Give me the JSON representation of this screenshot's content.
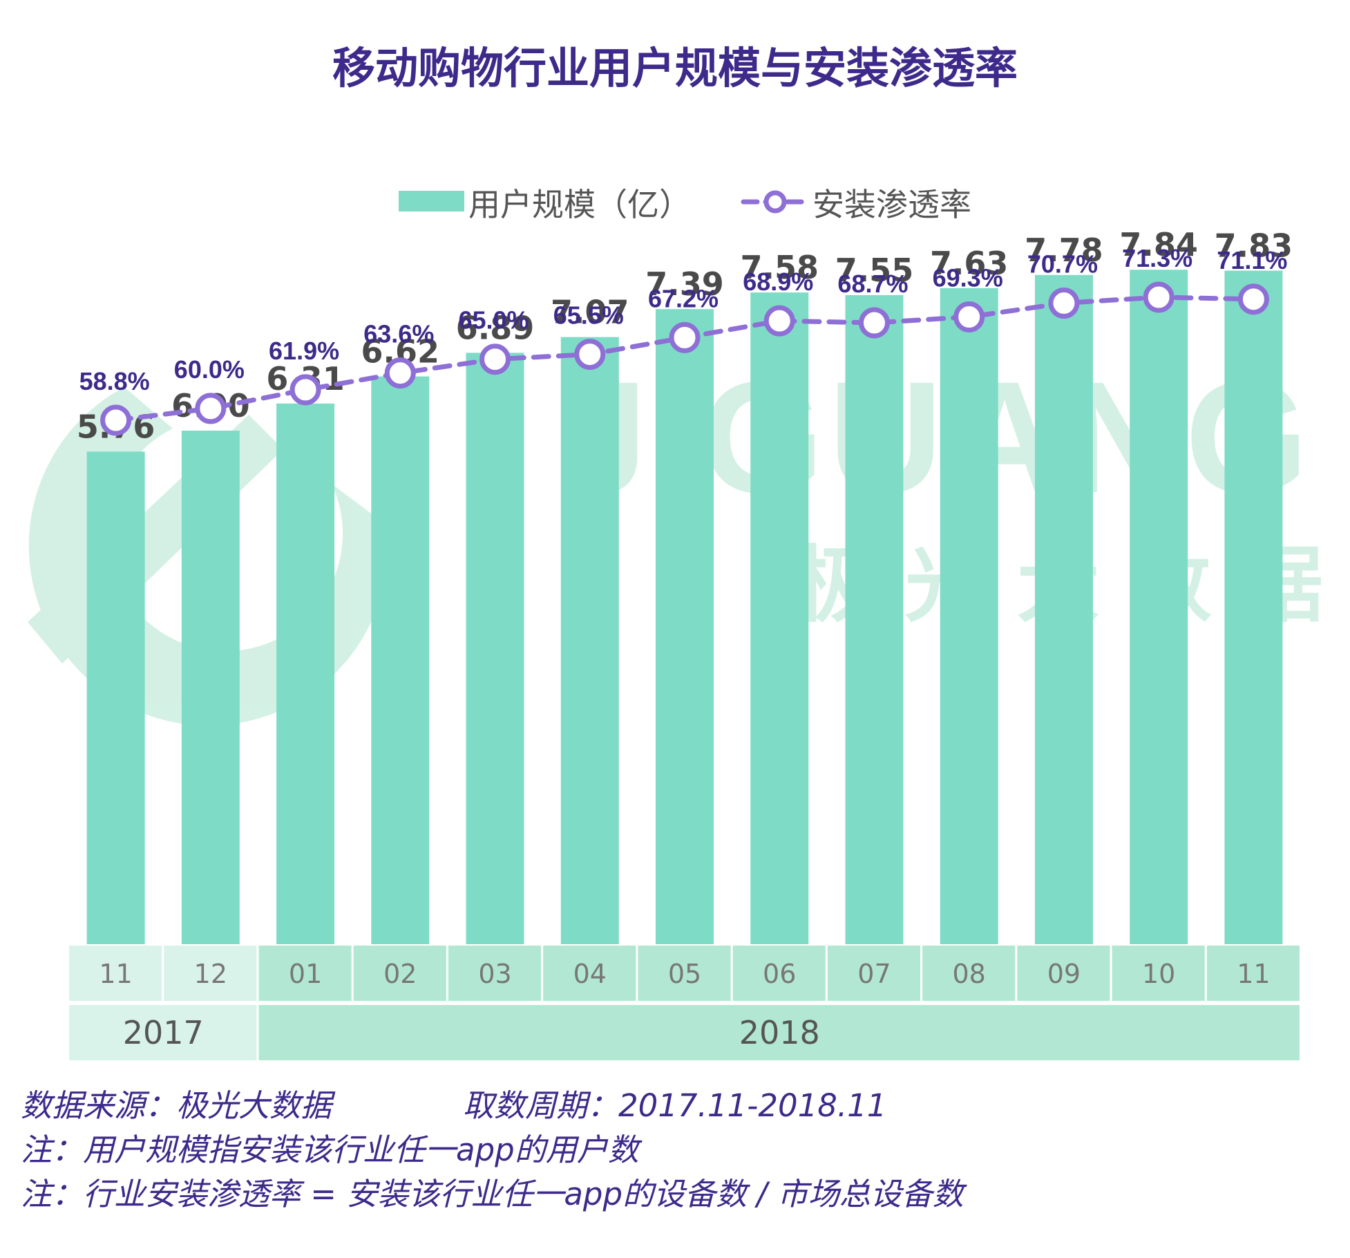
{
  "title": "移动购物行业用户规模与安装渗透率",
  "watermark": {
    "logo_text": "JIGUANG",
    "cn_text": "极 光 大 数 据"
  },
  "colors": {
    "title": "#3d2a8a",
    "bar": "#7edcc6",
    "line": "#8e6fd6",
    "marker_fill": "#ffffff",
    "bar_label": "#4a4a4a",
    "line_label": "#3d2a8a",
    "month_cell_2017": "#daf3ea",
    "month_cell_2018": "#b2e8d3",
    "axis_text": "#777777",
    "year_text": "#555555",
    "watermark": "#cdeee0"
  },
  "chart_data": {
    "type": "bar",
    "title": "移动购物行业用户规模与安装渗透率",
    "categories": [
      "11",
      "12",
      "01",
      "02",
      "03",
      "04",
      "05",
      "06",
      "07",
      "08",
      "09",
      "10",
      "11"
    ],
    "year_groups": [
      {
        "label": "2017",
        "count": 2
      },
      {
        "label": "2018",
        "count": 11
      }
    ],
    "series": [
      {
        "name": "用户规模（亿）",
        "type": "bar",
        "values": [
          5.76,
          6.0,
          6.31,
          6.62,
          6.89,
          7.07,
          7.39,
          7.58,
          7.55,
          7.63,
          7.78,
          7.84,
          7.83
        ],
        "labels": [
          "5.76",
          "6.00",
          "6.31",
          "6.62",
          "6.89",
          "7.07",
          "7.39",
          "7.58",
          "7.55",
          "7.63",
          "7.78",
          "7.84",
          "7.83"
        ]
      },
      {
        "name": "安装渗透率",
        "type": "line",
        "values": [
          58.8,
          60.0,
          61.9,
          63.6,
          65.0,
          65.5,
          67.2,
          68.9,
          68.7,
          69.3,
          70.7,
          71.3,
          71.1
        ],
        "labels": [
          "58.8%",
          "60.0%",
          "61.9%",
          "63.6%",
          "65.0%",
          "65.5%",
          "67.2%",
          "68.9%",
          "68.7%",
          "69.3%",
          "70.7%",
          "71.3%",
          "71.1%"
        ]
      }
    ],
    "legend_position": "top-center",
    "grid": false,
    "y_axis_visible": false
  },
  "footnotes": {
    "source": "数据来源：极光大数据",
    "period": "取数周期：2017.11-2018.11",
    "note1": "注：用户规模指安装该行业任一app的用户数",
    "note2": "注：行业安装渗透率 = 安装该行业任一app的设备数 / 市场总设备数"
  }
}
